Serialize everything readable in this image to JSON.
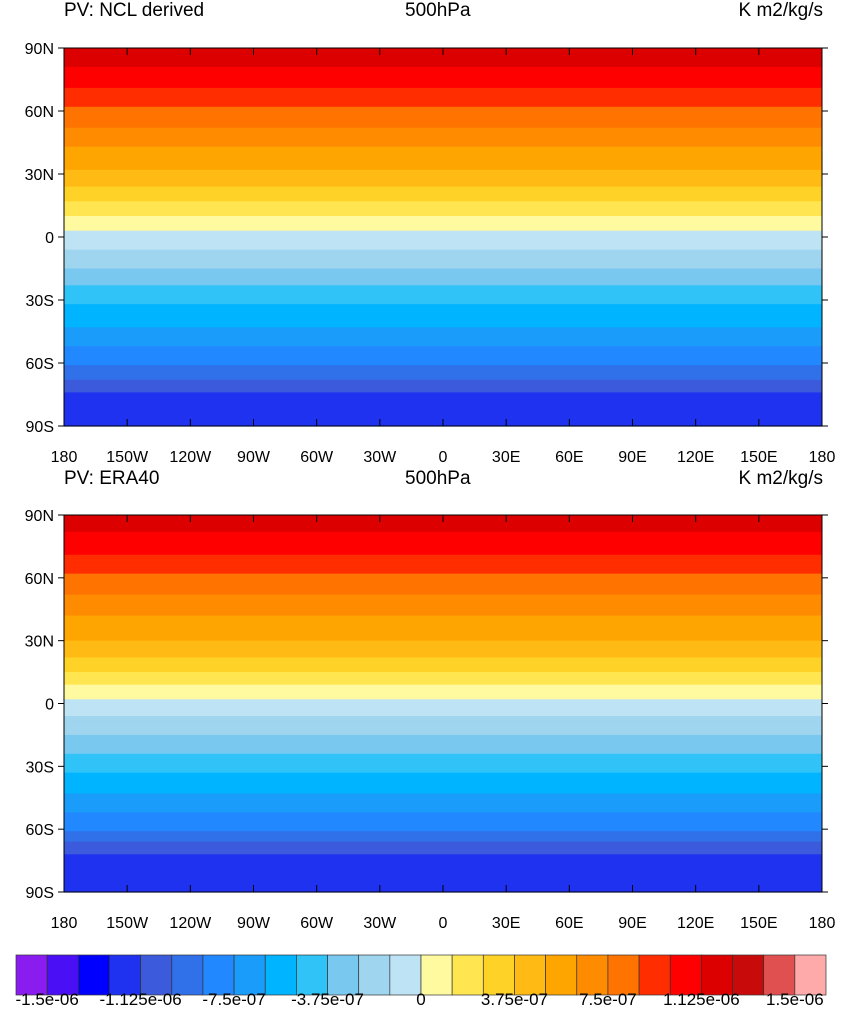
{
  "panels": [
    {
      "left_title": "PV: NCL derived",
      "center_title": "500hPa",
      "right_title": "K m2/kg/s",
      "zonal_profile": [
        1.25e-06,
        1.05e-06,
        8.5e-07,
        6.5e-07,
        4.8e-07,
        2.2e-07,
        -5e-08,
        -2.5e-07,
        -4.8e-07,
        -6.5e-07,
        -8.5e-07,
        -1.15e-06,
        -1.2e-06
      ]
    },
    {
      "left_title": "PV: ERA40",
      "center_title": "500hPa",
      "right_title": "K m2/kg/s",
      "zonal_profile": [
        1.2e-06,
        1.05e-06,
        8.5e-07,
        6.5e-07,
        5e-07,
        2.5e-07,
        -5e-08,
        -2.5e-07,
        -4.6e-07,
        -6.5e-07,
        -8.5e-07,
        -1.2e-06,
        -1.25e-06
      ]
    }
  ],
  "chart_data": {
    "type": "heatmap",
    "profile_latitudes": [
      90,
      75,
      60,
      45,
      30,
      15,
      0,
      -15,
      -30,
      -45,
      -60,
      -75,
      -90
    ],
    "lat_ticks": [
      "90N",
      "60N",
      "30N",
      "0",
      "30S",
      "60S",
      "90S"
    ],
    "lat_values": [
      90,
      60,
      30,
      0,
      -30,
      -60,
      -90
    ],
    "lon_ticks": [
      "180",
      "150W",
      "120W",
      "90W",
      "60W",
      "30W",
      "0",
      "30E",
      "60E",
      "90E",
      "120E",
      "150E",
      "180"
    ],
    "lon_values": [
      -180,
      -150,
      -120,
      -90,
      -60,
      -30,
      0,
      30,
      60,
      90,
      120,
      150,
      180
    ],
    "colorbar": {
      "min": -1.625e-06,
      "step": 1.25e-07,
      "colors": [
        "#8a1cf0",
        "#4b0ff5",
        "#0000ff",
        "#1e32f0",
        "#3c5adc",
        "#3070e8",
        "#2288ff",
        "#1a9cfa",
        "#00b4ff",
        "#30c3f8",
        "#78c8f0",
        "#9fd5ee",
        "#bee3f4",
        "#fffaa0",
        "#ffe650",
        "#ffd228",
        "#ffbb14",
        "#ffa500",
        "#ff8c00",
        "#ff7400",
        "#ff2d00",
        "#ff0000",
        "#dc0000",
        "#c80a0a",
        "#e05050",
        "#ffaaaa"
      ],
      "labels": [
        "-1.5e-06",
        "-1.125e-06",
        "-7.5e-07",
        "-3.75e-07",
        "0",
        "3.75e-07",
        "7.5e-07",
        "1.125e-06",
        "1.5e-06"
      ],
      "label_values": [
        -1.5e-06,
        -1.125e-06,
        -7.5e-07,
        -3.75e-07,
        0,
        3.75e-07,
        7.5e-07,
        1.125e-06,
        1.5e-06
      ]
    }
  }
}
